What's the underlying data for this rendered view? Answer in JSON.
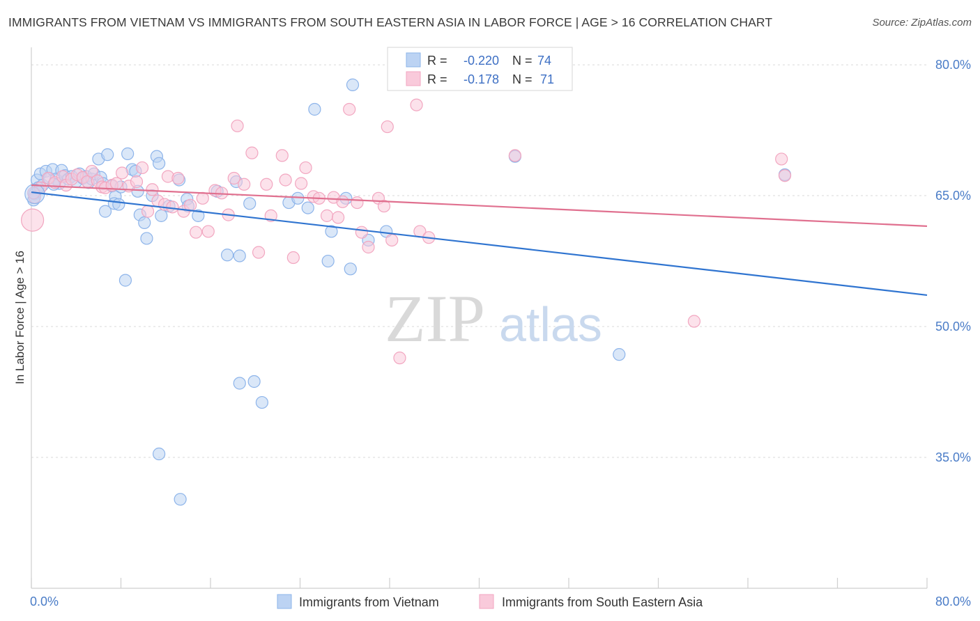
{
  "title": "IMMIGRANTS FROM VIETNAM VS IMMIGRANTS FROM SOUTH EASTERN ASIA IN LABOR FORCE | AGE > 16 CORRELATION CHART",
  "source": "Source: ZipAtlas.com",
  "watermark": {
    "zip": "ZIP",
    "atlas": "atlas"
  },
  "stats": {
    "r_label": "R =",
    "n_label": "N =",
    "rows": [
      {
        "r": "-0.220",
        "n": "74",
        "color": "#8db4ea",
        "fill": "#bcd3f3"
      },
      {
        "r": "-0.178",
        "n": "71",
        "color": "#f2a6c0",
        "fill": "#f9cadb"
      }
    ]
  },
  "chart_data": {
    "type": "scatter",
    "title": "IMMIGRANTS FROM VIETNAM VS IMMIGRANTS FROM SOUTH EASTERN ASIA IN LABOR FORCE | AGE > 16 CORRELATION CHART",
    "xlabel": "",
    "ylabel": "In Labor Force | Age > 16",
    "xlim": [
      0,
      80
    ],
    "ylim": [
      20,
      82
    ],
    "x_tick_labels": [
      {
        "value": 0,
        "label": "0.0%"
      },
      {
        "value": 80,
        "label": "80.0%"
      }
    ],
    "y_tick_labels": [
      {
        "value": 80,
        "label": "80.0%"
      },
      {
        "value": 65,
        "label": "65.0%"
      },
      {
        "value": 50,
        "label": "50.0%"
      },
      {
        "value": 35,
        "label": "35.0%"
      }
    ],
    "x_minor_ticks": [
      0,
      8,
      16,
      24,
      32,
      40,
      48,
      56,
      64,
      72,
      80
    ],
    "grid": true,
    "legend_position": "bottom",
    "series": [
      {
        "name": "Immigrants from Vietnam",
        "color": "#4f86d8",
        "fill": "#bcd3f3",
        "stroke": "#8db4ea",
        "trend": {
          "x": [
            0,
            80
          ],
          "y": [
            65.4,
            53.6
          ],
          "color": "#2f74d0"
        },
        "points": [
          [
            0.3,
            65.2
          ],
          [
            0.5,
            66.8
          ],
          [
            0.8,
            67.5
          ],
          [
            1.0,
            66.2
          ],
          [
            1.3,
            67.8
          ],
          [
            1.6,
            67.0
          ],
          [
            1.9,
            68.0
          ],
          [
            2.2,
            66.9
          ],
          [
            2.5,
            66.4
          ],
          [
            2.7,
            67.9
          ],
          [
            3.0,
            67.3
          ],
          [
            3.3,
            66.9
          ],
          [
            3.6,
            67.2
          ],
          [
            4.0,
            66.6
          ],
          [
            4.3,
            67.5
          ],
          [
            4.6,
            67.0
          ],
          [
            4.9,
            67.2
          ],
          [
            5.1,
            66.5
          ],
          [
            5.4,
            66.9
          ],
          [
            5.6,
            67.5
          ],
          [
            6.0,
            69.2
          ],
          [
            6.2,
            67.1
          ],
          [
            6.4,
            66.4
          ],
          [
            6.8,
            69.7
          ],
          [
            6.6,
            63.2
          ],
          [
            7.2,
            66.1
          ],
          [
            7.5,
            64.9
          ],
          [
            7.4,
            64.1
          ],
          [
            7.8,
            64.0
          ],
          [
            8.0,
            66.0
          ],
          [
            8.6,
            69.8
          ],
          [
            8.4,
            55.3
          ],
          [
            9.0,
            68.0
          ],
          [
            9.3,
            67.8
          ],
          [
            9.5,
            65.5
          ],
          [
            9.7,
            62.8
          ],
          [
            10.1,
            61.9
          ],
          [
            10.3,
            60.1
          ],
          [
            10.8,
            65.0
          ],
          [
            11.2,
            69.5
          ],
          [
            11.4,
            68.7
          ],
          [
            11.6,
            62.7
          ],
          [
            11.4,
            35.4
          ],
          [
            12.3,
            63.8
          ],
          [
            13.2,
            66.8
          ],
          [
            13.3,
            30.2
          ],
          [
            13.9,
            64.6
          ],
          [
            14.0,
            63.8
          ],
          [
            14.9,
            62.7
          ],
          [
            16.6,
            65.5
          ],
          [
            17.5,
            58.2
          ],
          [
            18.3,
            66.6
          ],
          [
            18.6,
            58.1
          ],
          [
            18.6,
            43.5
          ],
          [
            19.5,
            64.1
          ],
          [
            19.9,
            43.7
          ],
          [
            20.6,
            41.3
          ],
          [
            23.0,
            64.2
          ],
          [
            23.8,
            64.7
          ],
          [
            24.7,
            63.6
          ],
          [
            25.3,
            74.9
          ],
          [
            26.5,
            57.5
          ],
          [
            26.8,
            60.9
          ],
          [
            28.1,
            64.7
          ],
          [
            28.5,
            56.6
          ],
          [
            28.7,
            77.7
          ],
          [
            30.1,
            59.9
          ],
          [
            31.7,
            60.9
          ],
          [
            43.2,
            69.5
          ],
          [
            52.5,
            46.8
          ],
          [
            67.3,
            67.4
          ],
          [
            0.2,
            64.5
          ],
          [
            0.6,
            65.9
          ],
          [
            2.0,
            66.3
          ]
        ]
      },
      {
        "name": "Immigrants from South Eastern Asia",
        "color": "#e56a95",
        "fill": "#f9cadb",
        "stroke": "#f2a6c0",
        "trend": {
          "x": [
            0,
            80
          ],
          "y": [
            66.2,
            61.5
          ],
          "color": "#e0708f"
        },
        "points": [
          [
            0.1,
            62.2
          ],
          [
            0.3,
            64.8
          ],
          [
            0.8,
            65.9
          ],
          [
            1.5,
            67.0
          ],
          [
            2.1,
            66.5
          ],
          [
            2.8,
            67.2
          ],
          [
            3.1,
            66.2
          ],
          [
            3.6,
            66.9
          ],
          [
            4.1,
            67.4
          ],
          [
            4.6,
            67.1
          ],
          [
            5.0,
            66.6
          ],
          [
            5.4,
            67.8
          ],
          [
            5.9,
            66.7
          ],
          [
            6.3,
            66.0
          ],
          [
            6.6,
            65.9
          ],
          [
            7.2,
            66.2
          ],
          [
            7.6,
            66.4
          ],
          [
            8.1,
            67.6
          ],
          [
            8.7,
            66.1
          ],
          [
            9.4,
            66.6
          ],
          [
            9.9,
            68.2
          ],
          [
            10.4,
            63.2
          ],
          [
            10.8,
            65.7
          ],
          [
            11.3,
            64.4
          ],
          [
            11.9,
            64.0
          ],
          [
            12.2,
            67.2
          ],
          [
            12.6,
            63.7
          ],
          [
            13.1,
            67.0
          ],
          [
            13.6,
            63.2
          ],
          [
            14.2,
            63.9
          ],
          [
            14.7,
            60.8
          ],
          [
            15.3,
            64.7
          ],
          [
            15.8,
            60.9
          ],
          [
            16.4,
            65.6
          ],
          [
            17.0,
            65.3
          ],
          [
            17.6,
            62.8
          ],
          [
            18.1,
            67.0
          ],
          [
            18.4,
            73.0
          ],
          [
            19.0,
            66.3
          ],
          [
            19.7,
            69.9
          ],
          [
            20.3,
            58.5
          ],
          [
            21.0,
            66.3
          ],
          [
            21.4,
            62.7
          ],
          [
            22.4,
            69.6
          ],
          [
            22.7,
            66.8
          ],
          [
            23.4,
            57.9
          ],
          [
            24.1,
            66.4
          ],
          [
            24.5,
            68.2
          ],
          [
            25.2,
            64.9
          ],
          [
            25.7,
            64.7
          ],
          [
            26.4,
            62.7
          ],
          [
            27.0,
            64.8
          ],
          [
            27.4,
            62.5
          ],
          [
            27.8,
            64.3
          ],
          [
            28.4,
            74.9
          ],
          [
            29.1,
            64.2
          ],
          [
            29.5,
            60.8
          ],
          [
            30.1,
            59.1
          ],
          [
            31.0,
            64.7
          ],
          [
            31.5,
            63.8
          ],
          [
            31.8,
            72.9
          ],
          [
            32.2,
            59.9
          ],
          [
            32.9,
            46.4
          ],
          [
            34.4,
            75.4
          ],
          [
            34.7,
            60.9
          ],
          [
            35.5,
            60.2
          ],
          [
            43.2,
            69.6
          ],
          [
            59.2,
            50.6
          ],
          [
            67.0,
            69.2
          ],
          [
            67.3,
            67.3
          ],
          [
            0.2,
            65.3
          ]
        ]
      }
    ]
  }
}
